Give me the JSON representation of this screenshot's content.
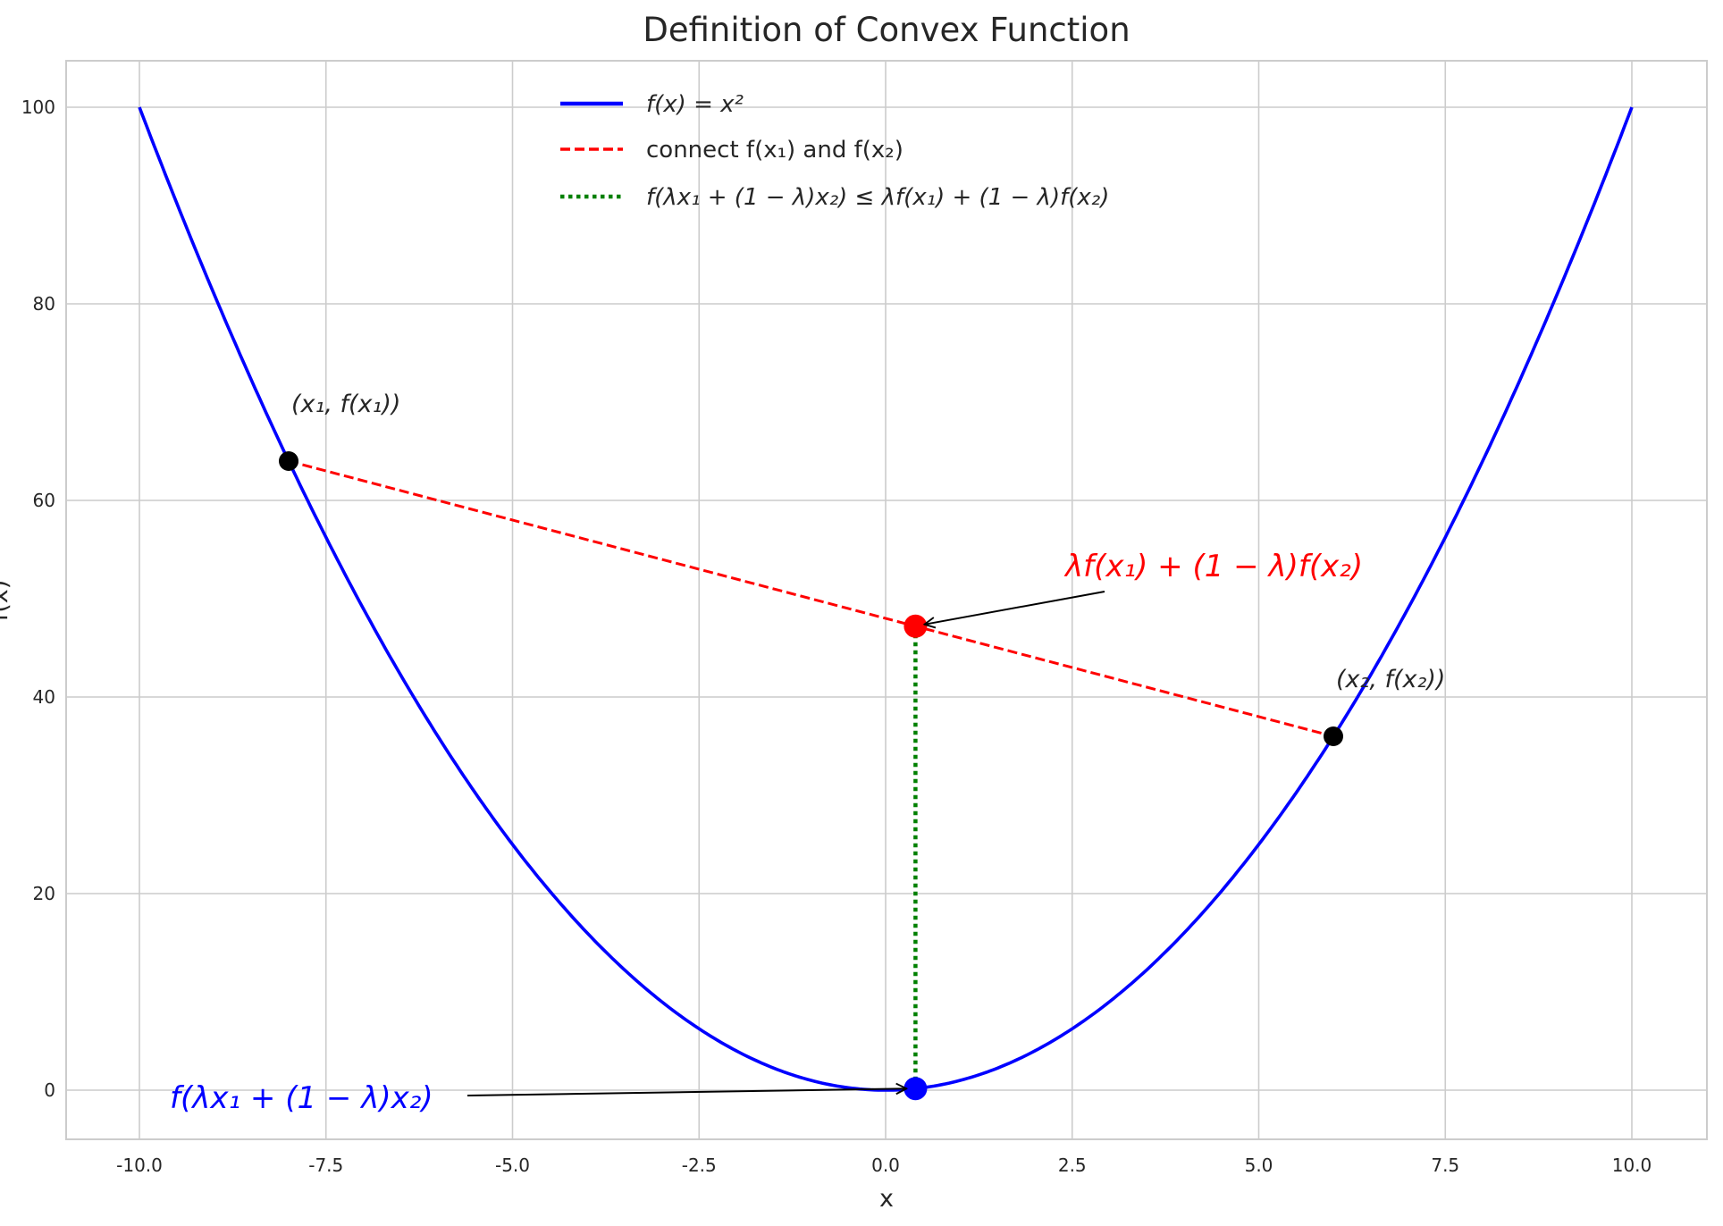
{
  "chart_data": {
    "type": "line",
    "title": "Definition of Convex Function",
    "xlabel": "x",
    "ylabel": "f(x)",
    "xlim": [
      -11,
      11
    ],
    "ylim": [
      -5,
      105
    ],
    "xticks": [
      -10.0,
      -7.5,
      -5.0,
      -2.5,
      0.0,
      2.5,
      5.0,
      7.5,
      10.0
    ],
    "xtick_labels": [
      "-10.0",
      "-7.5",
      "-5.0",
      "-2.5",
      "0.0",
      "2.5",
      "5.0",
      "7.5",
      "10.0"
    ],
    "yticks": [
      0,
      20,
      40,
      60,
      80,
      100
    ],
    "ytick_labels": [
      "0",
      "20",
      "40",
      "60",
      "80",
      "100"
    ],
    "grid": true,
    "legend_position": "top-center",
    "series": [
      {
        "name": "f(x) = x²",
        "style": "solid",
        "color": "#0000ff",
        "function": "x^2",
        "x_range": [
          -10,
          10
        ]
      },
      {
        "name": "connect f(x₁) and f(x₂)",
        "style": "dashed",
        "color": "#ff0000",
        "x": [
          -8,
          6
        ],
        "y": [
          64,
          36
        ]
      },
      {
        "name": "f(λx₁ + (1 − λ)x₂) ≤ λf(x₁) + (1 − λ)f(x₂)",
        "style": "dotted",
        "color": "#008000",
        "x": [
          0.4,
          0.4
        ],
        "y": [
          0.16,
          47.2
        ]
      }
    ],
    "points": [
      {
        "x": -8,
        "y": 64,
        "color": "#000000",
        "label": "(x₁, f(x₁))"
      },
      {
        "x": 6,
        "y": 36,
        "color": "#000000",
        "label": "(x₂, f(x₂))"
      },
      {
        "x": 0.4,
        "y": 47.2,
        "color": "#ff0000"
      },
      {
        "x": 0.4,
        "y": 0.16,
        "color": "#0000ff"
      }
    ],
    "annotations": [
      {
        "text": "λf(x₁) + (1 − λ)f(x₂)",
        "color": "#ff0000",
        "target": [
          0.4,
          47.2
        ]
      },
      {
        "text": "f(λx₁ + (1 − λ)x₂)",
        "color": "#0000ff",
        "target": [
          0.4,
          0.16
        ]
      }
    ]
  }
}
